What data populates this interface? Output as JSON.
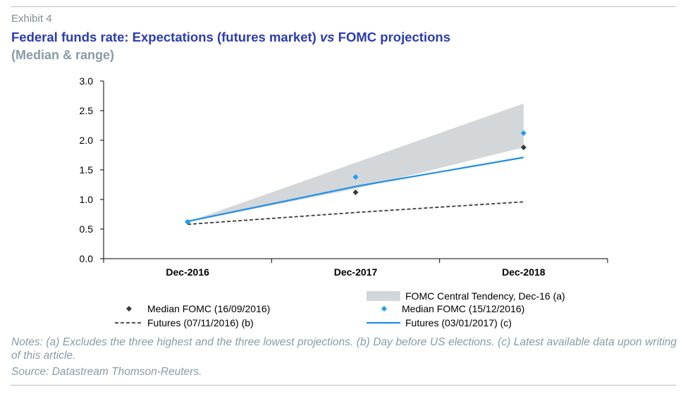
{
  "header": {
    "exhibit": "Exhibit 4",
    "title": "Federal funds rate: Expectations (futures market) vs FOMC projections",
    "subtitle": "(Median & range)"
  },
  "footer": {
    "notes": "Notes: (a) Excludes the three highest and the three lowest projections. (b) Day before US elections. (c) Latest available data upon writing of this article.",
    "source": "Source: Datastream Thomson-Reuters."
  },
  "chart_data": {
    "type": "line",
    "categories": [
      "Dec-2016",
      "Dec-2017",
      "Dec-2018"
    ],
    "ylim": [
      0,
      3.0
    ],
    "yticks": [
      "0.0",
      "0.5",
      "1.0",
      "1.5",
      "2.0",
      "2.5",
      "3.0"
    ],
    "grid": false,
    "legend_position": "bottom",
    "series": [
      {
        "name": "FOMC Central Tendency, Dec-16 (a)",
        "kind": "band",
        "color": "#d3d7d9",
        "low": [
          0.62,
          1.18,
          1.88
        ],
        "high": [
          0.62,
          1.62,
          2.62
        ]
      },
      {
        "name": "Median FOMC (16/09/2016)",
        "kind": "markers",
        "color": "#3a3a3a",
        "values": [
          0.62,
          1.12,
          1.88
        ]
      },
      {
        "name": "Median FOMC (15/12/2016)",
        "kind": "markers",
        "color": "#1f9ef0",
        "values": [
          0.62,
          1.38,
          2.12
        ]
      },
      {
        "name": "Futures (07/11/2016) (b)",
        "kind": "dashed-line",
        "color": "#3a3a3a",
        "values": [
          0.58,
          0.78,
          0.96
        ]
      },
      {
        "name": "Futures (03/01/2017) (c)",
        "kind": "line",
        "color": "#1f8fe8",
        "values": [
          0.63,
          1.22,
          1.71
        ]
      }
    ]
  }
}
